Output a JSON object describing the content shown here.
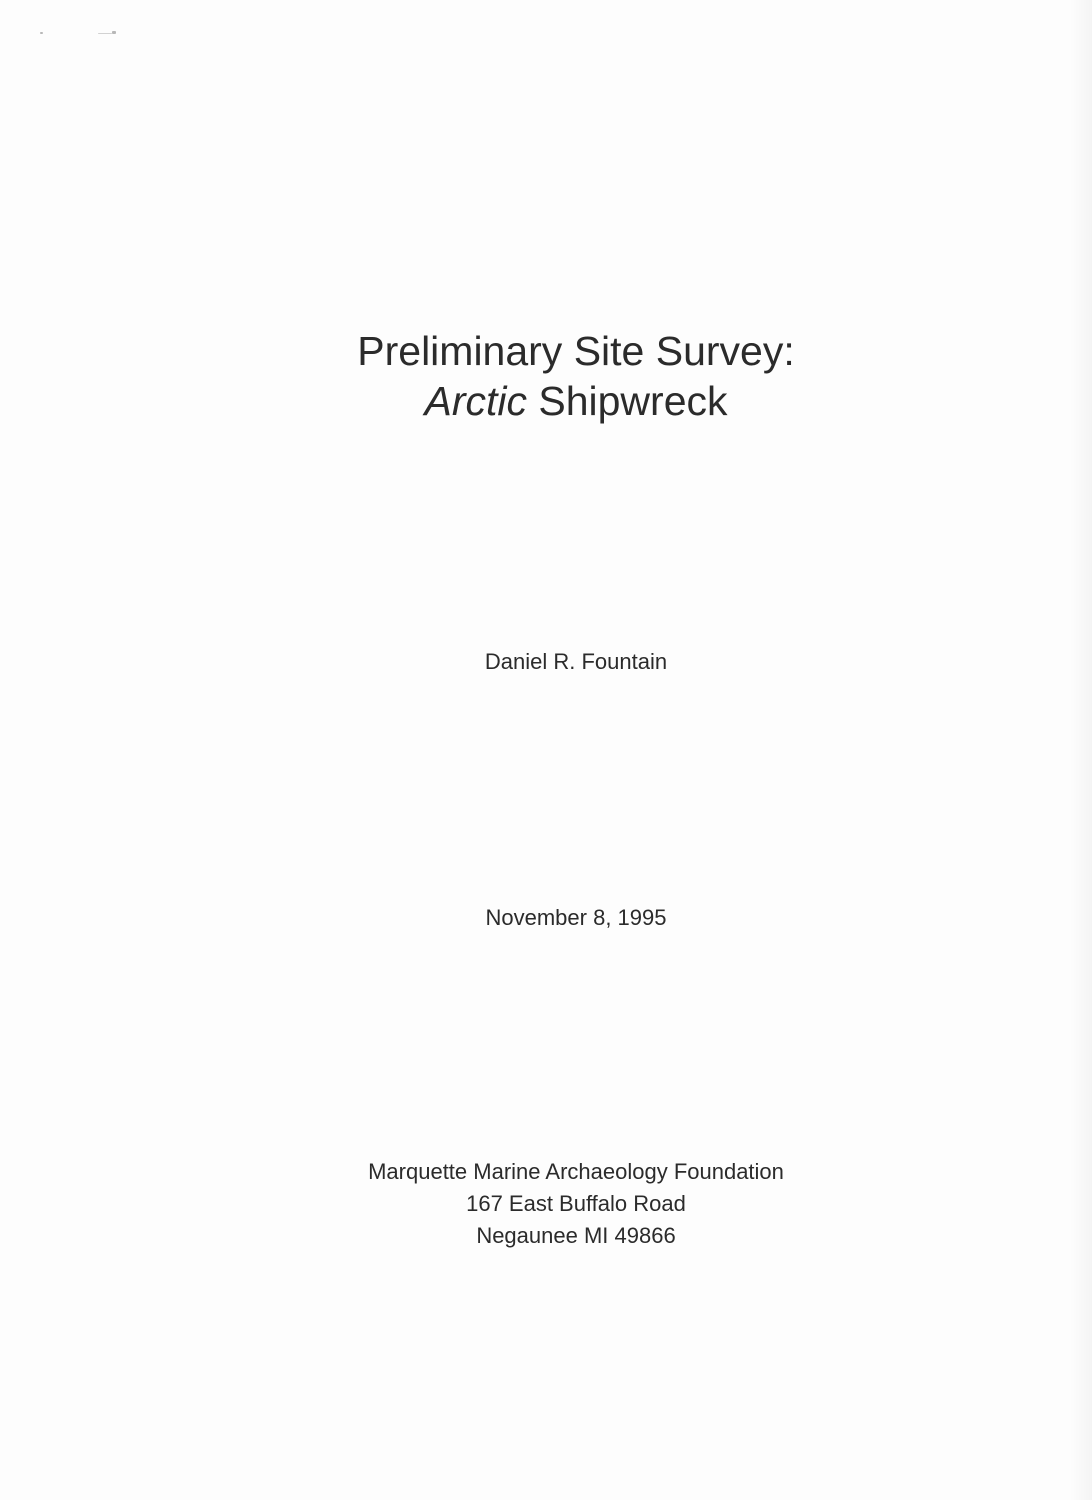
{
  "title": {
    "line1": "Preliminary Site Survey:",
    "line2_italic": "Arctic",
    "line2_rest": " Shipwreck"
  },
  "author": "Daniel R. Fountain",
  "date": "November 8, 1995",
  "publisher": {
    "name": "Marquette Marine Archaeology Foundation",
    "street": "167 East Buffalo Road",
    "city": "Negaunee MI 49866"
  }
}
